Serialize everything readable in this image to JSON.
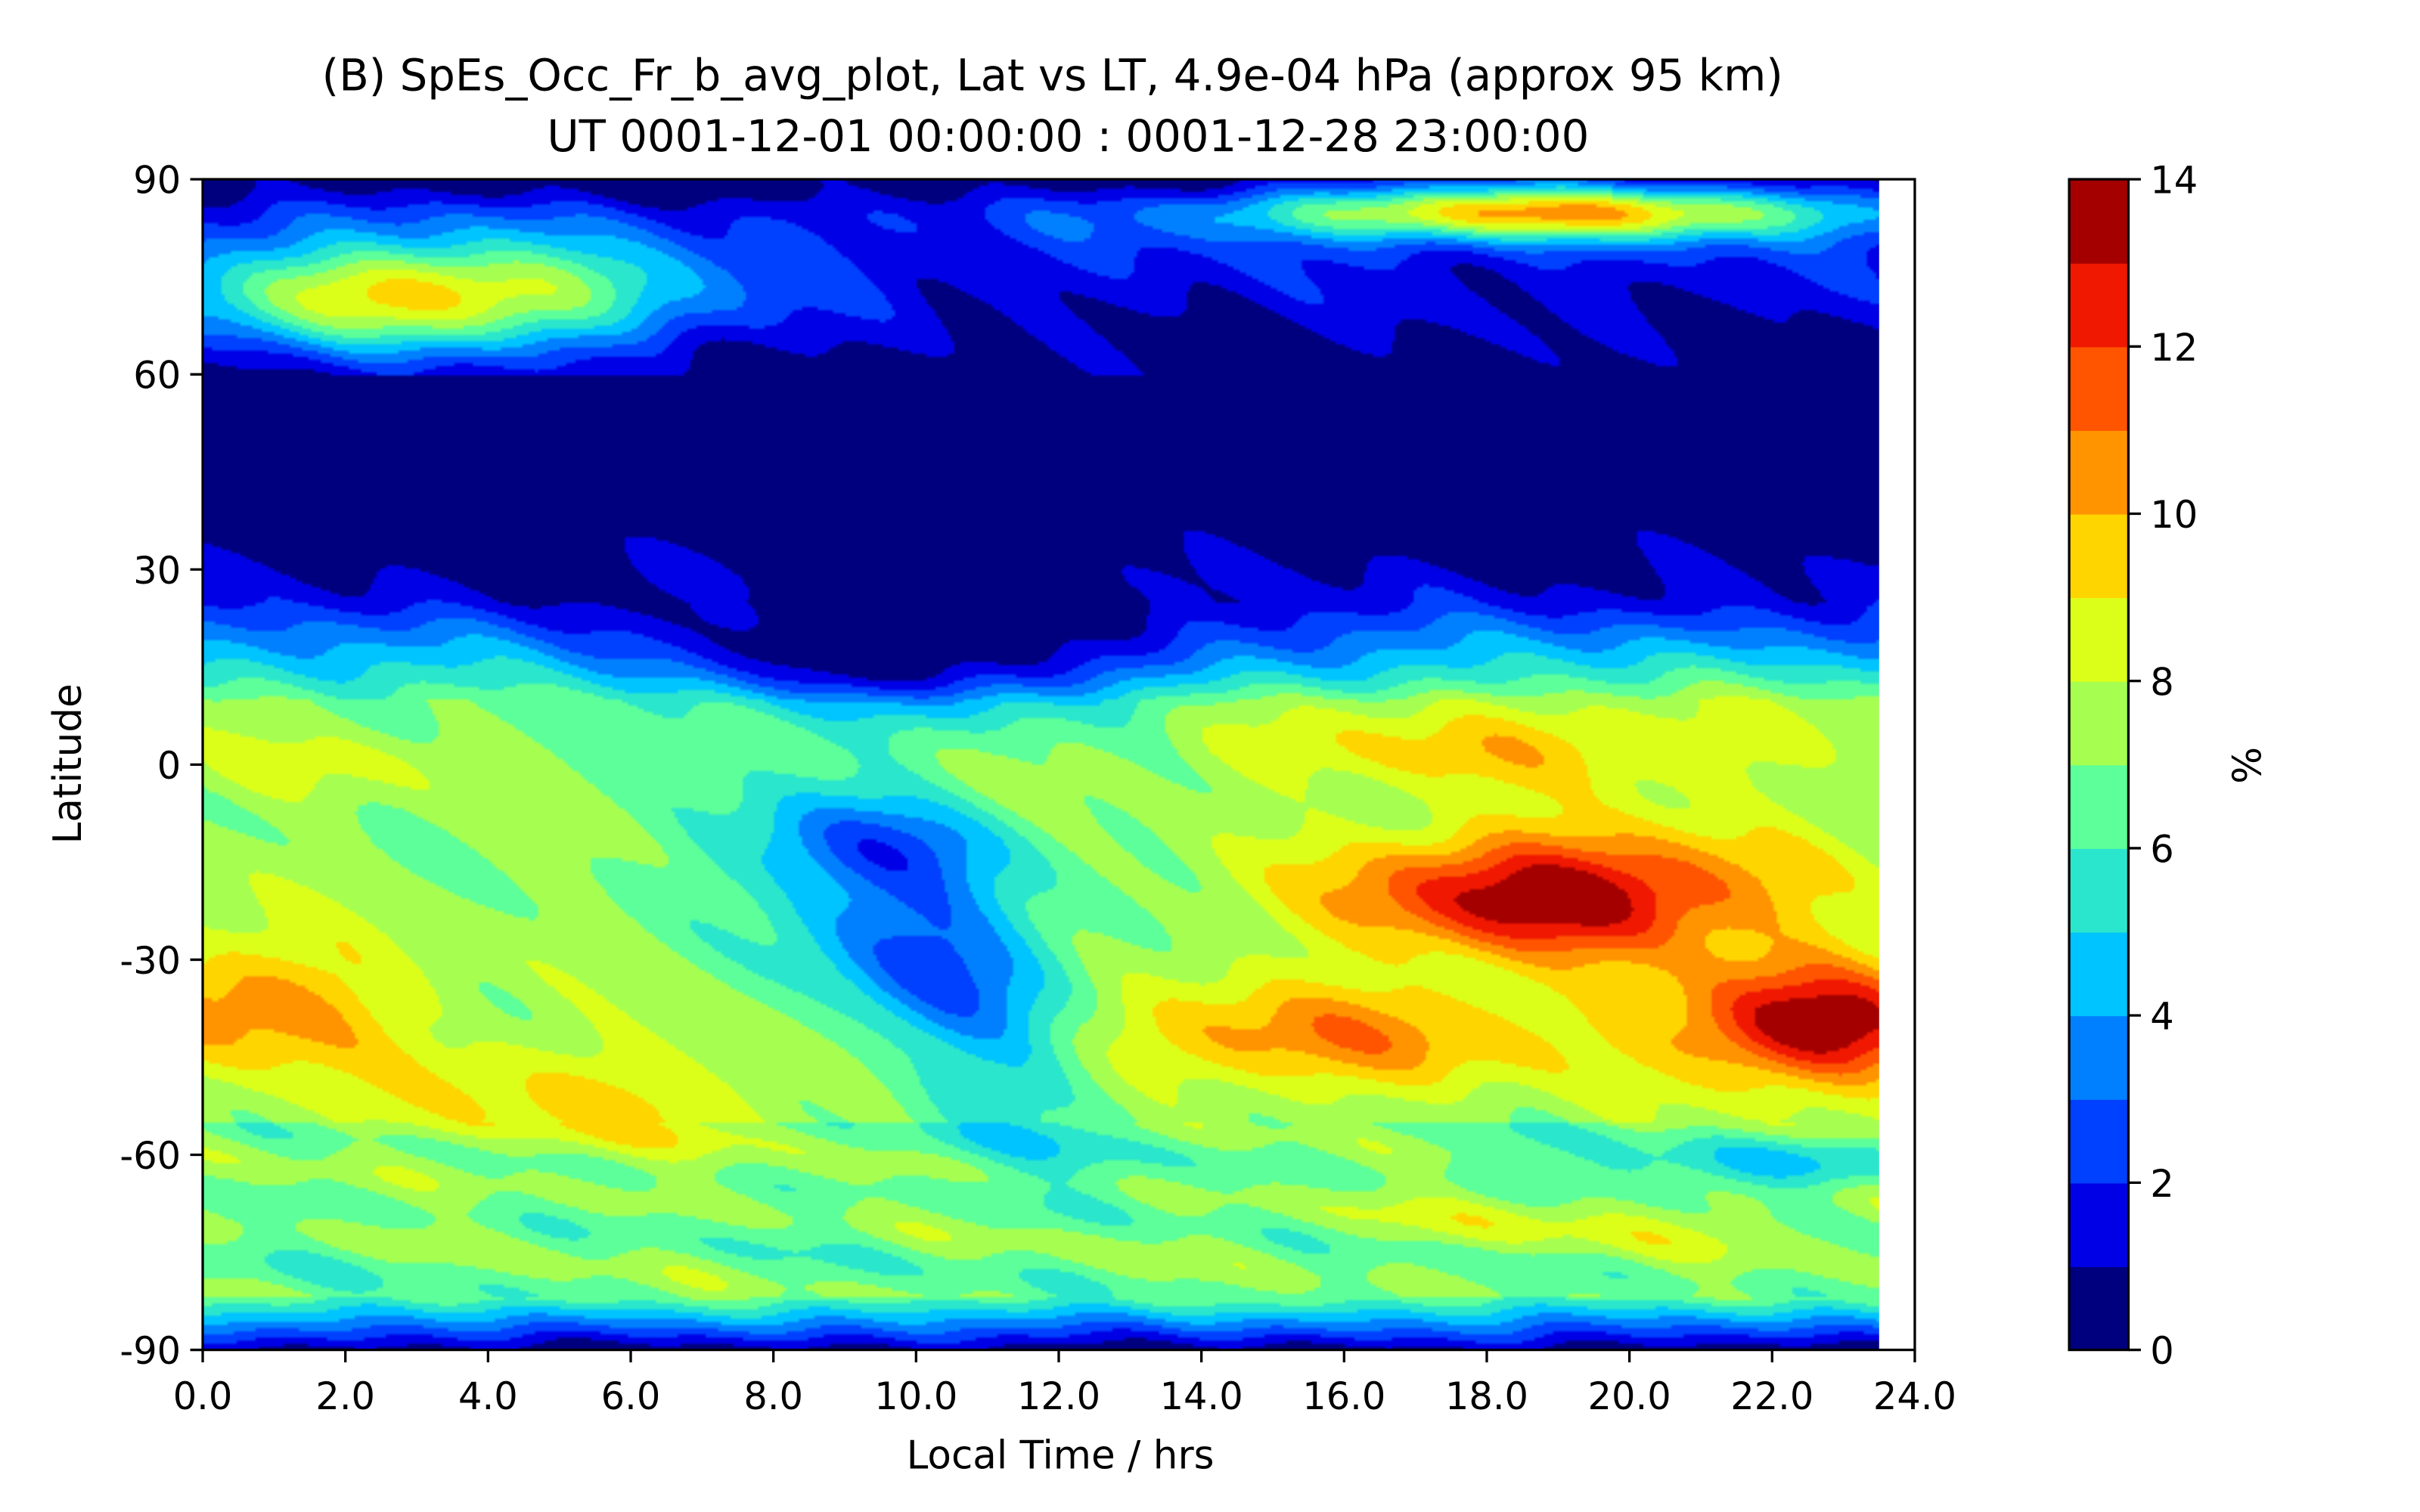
{
  "chart_data": {
    "type": "heatmap",
    "title_line1": "(B) SpEs_Occ_Fr_b_avg_plot, Lat vs LT, 4.9e-04 hPa (approx 95 km)",
    "title_line2": "UT 0001-12-01 00:00:00 : 0001-12-28 23:00:00",
    "xlabel": "Local Time / hrs",
    "ylabel": "Latitude",
    "colorbar_label": "%",
    "xlim": [
      0,
      24
    ],
    "ylim": [
      -90,
      90
    ],
    "data_x_extent": [
      0,
      23.5
    ],
    "x_ticks": [
      "0.0",
      "2.0",
      "4.0",
      "6.0",
      "8.0",
      "10.0",
      "12.0",
      "14.0",
      "16.0",
      "18.0",
      "20.0",
      "22.0",
      "24.0"
    ],
    "y_ticks": [
      "90",
      "60",
      "30",
      "0",
      "-30",
      "-60",
      "-90"
    ],
    "colorbar_ticks": [
      "14",
      "12",
      "10",
      "8",
      "6",
      "4",
      "2",
      "0"
    ],
    "levels": [
      0,
      1,
      2,
      3,
      4,
      5,
      6,
      7,
      8,
      9,
      10,
      11,
      12,
      13,
      14
    ],
    "colors": [
      "#00007f",
      "#0000e6",
      "#0040ff",
      "#0080ff",
      "#00c4ff",
      "#2ae6cc",
      "#5cff9a",
      "#a6ff50",
      "#dcff1a",
      "#ffd500",
      "#ff9400",
      "#ff5500",
      "#f01800",
      "#a50000"
    ],
    "features": [
      {
        "lt": 19.0,
        "lat": -20,
        "value": 13.5,
        "desc": "peak"
      },
      {
        "lt": 22.4,
        "lat": -40,
        "value": 13.2,
        "desc": "peak"
      },
      {
        "lt": 1.0,
        "lat": -38,
        "value": 10.5,
        "desc": "local max"
      },
      {
        "lt": 15.2,
        "lat": -40,
        "value": 11.0,
        "desc": "local max"
      },
      {
        "lt": 18.5,
        "lat": 2,
        "value": 9.5,
        "desc": "local max"
      },
      {
        "lt": 3.0,
        "lat": 72,
        "value": 10.2,
        "desc": "local max"
      },
      {
        "lt": 18.5,
        "lat": 85,
        "value": 10.0,
        "desc": "local max"
      },
      {
        "lt": 9.5,
        "lat": -40,
        "value": 2.0,
        "desc": "local min"
      },
      {
        "lt": 9.5,
        "lat": -13,
        "value": 2.8,
        "desc": "local min"
      },
      {
        "lt": 10.0,
        "lat": 55,
        "value": 0.0,
        "desc": "minimum region"
      }
    ]
  }
}
